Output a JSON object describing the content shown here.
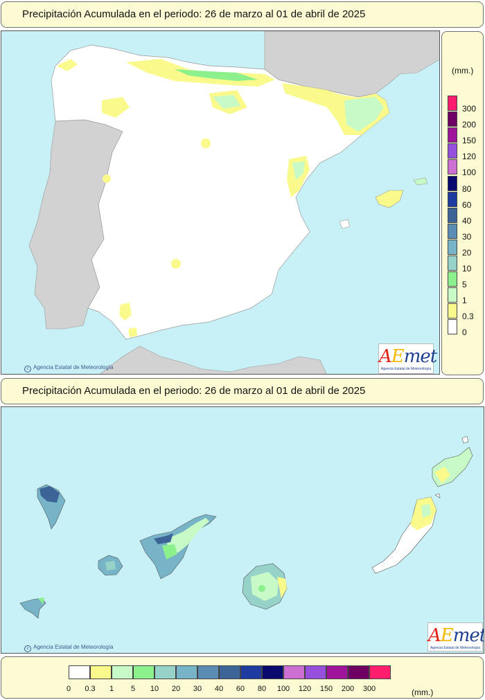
{
  "peninsula": {
    "title": "Precipitación Acumulada en el periodo: 26 de marzo al 01 de abril de 2025",
    "credit": "Agencia Estatal de Meteorología"
  },
  "canarias": {
    "title": "Precipitación Acumulada en el periodo: 26 de marzo al 01 de abril de 2025",
    "credit": "Agencia Estatal de Meteorología"
  },
  "logo": {
    "a": "A",
    "e": "E",
    "rest": "met",
    "sub": "Agencia Estatal de Meteorología"
  },
  "legend": {
    "unit": "(mm.)",
    "classes": [
      {
        "label": "0",
        "color": "#ffffff"
      },
      {
        "label": "0.3",
        "color": "#fafa8c"
      },
      {
        "label": "1",
        "color": "#c8fac8"
      },
      {
        "label": "5",
        "color": "#8cf08c"
      },
      {
        "label": "10",
        "color": "#96d2c8"
      },
      {
        "label": "20",
        "color": "#78b4c8"
      },
      {
        "label": "30",
        "color": "#5a8cb4"
      },
      {
        "label": "40",
        "color": "#3c6496"
      },
      {
        "label": "60",
        "color": "#1e3ca0"
      },
      {
        "label": "80",
        "color": "#0a0a6e"
      },
      {
        "label": "100",
        "color": "#cd6ed2"
      },
      {
        "label": "120",
        "color": "#9650dc"
      },
      {
        "label": "150",
        "color": "#a0149b"
      },
      {
        "label": "200",
        "color": "#6e0064"
      },
      {
        "label": "300",
        "color": "#ff1e6e"
      }
    ]
  },
  "colors": {
    "sea": "#c8f0f7",
    "land": "#ffffff",
    "foreign_land": "#d2d2d2",
    "panel_bg": "#fdfbd3"
  }
}
